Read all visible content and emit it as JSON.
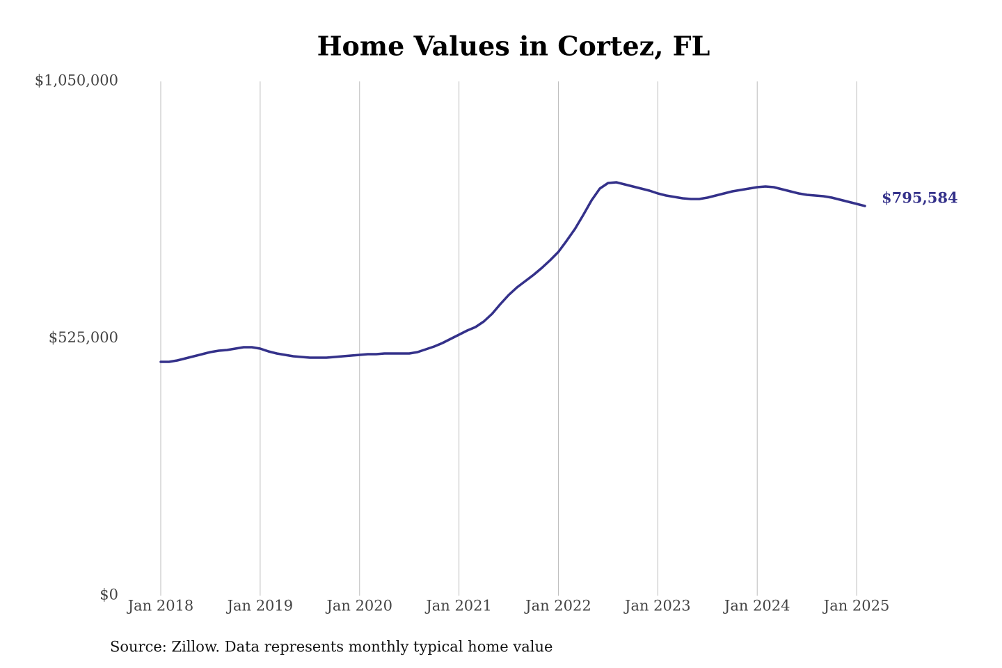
{
  "chart_data": {
    "type": "line",
    "title": "Home Values in Cortez, FL",
    "source": "Source: Zillow. Data represents monthly typical home value",
    "x": [
      "2018-01",
      "2018-02",
      "2018-03",
      "2018-04",
      "2018-05",
      "2018-06",
      "2018-07",
      "2018-08",
      "2018-09",
      "2018-10",
      "2018-11",
      "2018-12",
      "2019-01",
      "2019-02",
      "2019-03",
      "2019-04",
      "2019-05",
      "2019-06",
      "2019-07",
      "2019-08",
      "2019-09",
      "2019-10",
      "2019-11",
      "2019-12",
      "2020-01",
      "2020-02",
      "2020-03",
      "2020-04",
      "2020-05",
      "2020-06",
      "2020-07",
      "2020-08",
      "2020-09",
      "2020-10",
      "2020-11",
      "2020-12",
      "2021-01",
      "2021-02",
      "2021-03",
      "2021-04",
      "2021-05",
      "2021-06",
      "2021-07",
      "2021-08",
      "2021-09",
      "2021-10",
      "2021-11",
      "2021-12",
      "2022-01",
      "2022-02",
      "2022-03",
      "2022-04",
      "2022-05",
      "2022-06",
      "2022-07",
      "2022-08",
      "2022-09",
      "2022-10",
      "2022-11",
      "2022-12",
      "2023-01",
      "2023-02",
      "2023-03",
      "2023-04",
      "2023-05",
      "2023-06",
      "2023-07",
      "2023-08",
      "2023-09",
      "2023-10",
      "2023-11",
      "2023-12",
      "2024-01",
      "2024-02",
      "2024-03",
      "2024-04",
      "2024-05",
      "2024-06",
      "2024-07",
      "2024-08",
      "2024-09",
      "2024-10",
      "2024-11",
      "2024-12",
      "2025-01",
      "2025-02"
    ],
    "series": [
      {
        "name": "Home value",
        "color": "#34318a",
        "values": [
          477400,
          477400,
          480200,
          484500,
          488800,
          493000,
          497300,
          500100,
          501500,
          504400,
          507200,
          507200,
          504400,
          498700,
          494400,
          491600,
          488800,
          487300,
          485900,
          485900,
          485900,
          487300,
          488800,
          490200,
          491600,
          493000,
          493000,
          494400,
          494400,
          494400,
          494400,
          497300,
          503000,
          508600,
          515700,
          524300,
          532800,
          541300,
          548400,
          559800,
          575400,
          595300,
          613800,
          629400,
          642200,
          655000,
          669200,
          684800,
          701900,
          724700,
          748800,
          777200,
          807000,
          831200,
          842500,
          844000,
          839700,
          835400,
          831200,
          826900,
          821200,
          817000,
          814100,
          811300,
          809900,
          809900,
          812700,
          817000,
          821200,
          825500,
          828300,
          831200,
          834000,
          835400,
          834000,
          829800,
          825500,
          821200,
          818400,
          817000,
          815500,
          812700,
          808400,
          804200,
          799900,
          795584
        ],
        "value_labels": [
          null,
          null,
          null,
          null,
          null,
          null,
          null,
          null,
          null,
          null,
          null,
          null,
          null,
          null,
          null,
          null,
          null,
          null,
          null,
          null,
          null,
          null,
          null,
          null,
          null,
          null,
          null,
          null,
          null,
          null,
          null,
          null,
          null,
          null,
          null,
          null,
          null,
          null,
          null,
          null,
          null,
          null,
          null,
          null,
          null,
          null,
          null,
          null,
          null,
          null,
          null,
          null,
          null,
          null,
          null,
          null,
          null,
          null,
          null,
          null,
          null,
          null,
          null,
          null,
          null,
          null,
          null,
          null,
          null,
          null,
          null,
          null,
          null,
          null,
          null,
          null,
          null,
          null,
          null,
          null,
          null,
          null,
          null,
          null,
          null,
          "$795,584"
        ]
      }
    ],
    "xlim": [
      "2018-01",
      "2025-02"
    ],
    "xticks": [
      {
        "value": "2018-01",
        "label": "Jan 2018"
      },
      {
        "value": "2019-01",
        "label": "Jan 2019"
      },
      {
        "value": "2020-01",
        "label": "Jan 2020"
      },
      {
        "value": "2021-01",
        "label": "Jan 2021"
      },
      {
        "value": "2022-01",
        "label": "Jan 2022"
      },
      {
        "value": "2023-01",
        "label": "Jan 2023"
      },
      {
        "value": "2024-01",
        "label": "Jan 2024"
      },
      {
        "value": "2025-01",
        "label": "Jan 2025"
      }
    ],
    "ylim": [
      0,
      1050000
    ],
    "yticks": [
      {
        "value": 0,
        "label": "$0"
      },
      {
        "value": 525000,
        "label": "$525,000"
      },
      {
        "value": 1050000,
        "label": "$1,050,000"
      }
    ],
    "grid": "x"
  }
}
